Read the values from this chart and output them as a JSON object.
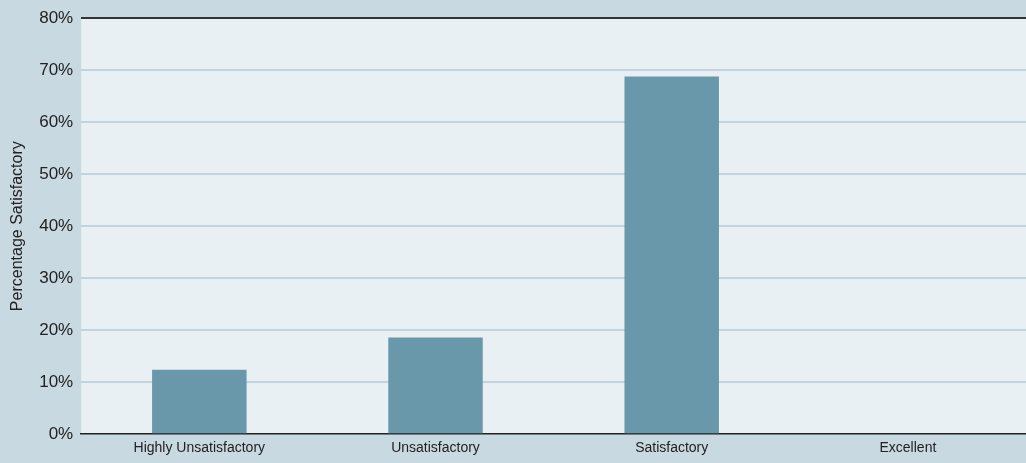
{
  "chart_data": {
    "type": "bar",
    "ylabel": "Percentage Satisfactory",
    "categories": [
      "Highly Unsatisfactory",
      "Unsatisfactory",
      "Satisfactory",
      "Excellent"
    ],
    "values": [
      12.4,
      18.6,
      68.8,
      0
    ],
    "color": "#6a98ab",
    "ylim": [
      0,
      80
    ],
    "yticks": [
      {
        "value": 0,
        "label": "0%"
      },
      {
        "value": 10,
        "label": "10%"
      },
      {
        "value": 20,
        "label": "20%"
      },
      {
        "value": 30,
        "label": "30%"
      },
      {
        "value": 40,
        "label": "40%"
      },
      {
        "value": 50,
        "label": "50%"
      },
      {
        "value": 60,
        "label": "60%"
      },
      {
        "value": 70,
        "label": "70%"
      },
      {
        "value": 80,
        "label": "80%"
      }
    ],
    "grid": "y",
    "legend": false
  }
}
